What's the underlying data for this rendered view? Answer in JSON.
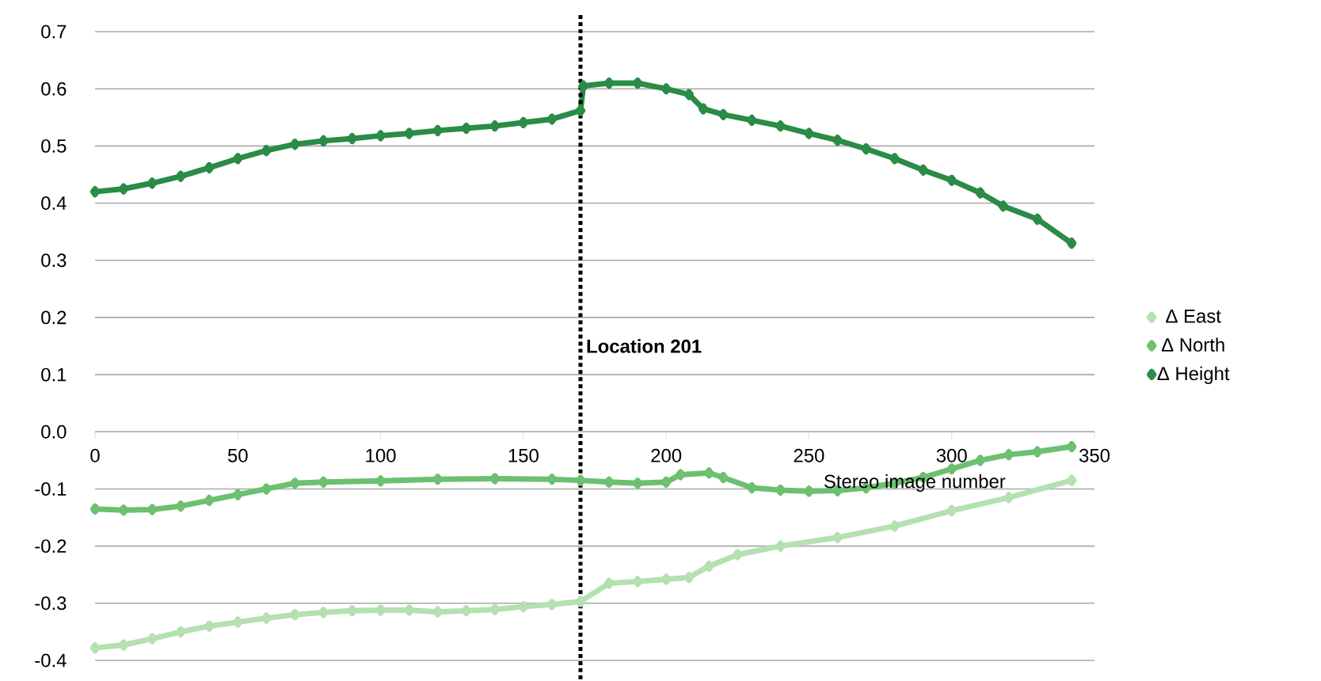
{
  "chart_data": {
    "type": "line",
    "xlabel": "Stereo image number",
    "marker": "diamond",
    "line_style": "solid",
    "grid": "y",
    "legend": "right",
    "xlim": [
      0,
      350
    ],
    "xticks": [
      0,
      50,
      100,
      150,
      200,
      250,
      300,
      350
    ],
    "ylim": [
      -0.4,
      0.7
    ],
    "yticks": [
      -0.4,
      -0.3,
      -0.2,
      -0.1,
      {
        "value": 0,
        "label": "0.0"
      },
      0.1,
      0.2,
      0.3,
      0.4,
      0.5,
      0.6,
      0.7
    ],
    "ref_lines": [
      {
        "axis": "x",
        "value": 170,
        "label": "Location 201",
        "color": "#000000",
        "line_style": "dotted"
      }
    ],
    "series": [
      {
        "name": "Δ East",
        "color": "#b5e0b0",
        "x": [
          0,
          10,
          20,
          30,
          40,
          50,
          60,
          70,
          80,
          90,
          100,
          110,
          120,
          130,
          140,
          150,
          160,
          170,
          180,
          190,
          200,
          208,
          215,
          225,
          240,
          260,
          280,
          300,
          320,
          342
        ],
        "values": [
          -0.378,
          -0.373,
          -0.362,
          -0.35,
          -0.34,
          -0.333,
          -0.326,
          -0.32,
          -0.316,
          -0.313,
          -0.312,
          -0.312,
          -0.315,
          -0.313,
          -0.311,
          -0.306,
          -0.302,
          -0.297,
          -0.265,
          -0.262,
          -0.258,
          -0.255,
          -0.235,
          -0.215,
          -0.2,
          -0.185,
          -0.165,
          -0.138,
          -0.115,
          -0.085
        ]
      },
      {
        "name": "Δ North",
        "color": "#6cc070",
        "x": [
          0,
          10,
          20,
          30,
          40,
          50,
          60,
          70,
          80,
          100,
          120,
          140,
          160,
          170,
          180,
          190,
          200,
          205,
          215,
          220,
          230,
          240,
          250,
          260,
          270,
          280,
          290,
          300,
          310,
          320,
          330,
          342
        ],
        "values": [
          -0.135,
          -0.137,
          -0.136,
          -0.13,
          -0.12,
          -0.11,
          -0.1,
          -0.09,
          -0.088,
          -0.086,
          -0.083,
          -0.082,
          -0.083,
          -0.085,
          -0.088,
          -0.09,
          -0.088,
          -0.075,
          -0.072,
          -0.08,
          -0.098,
          -0.102,
          -0.104,
          -0.103,
          -0.098,
          -0.09,
          -0.08,
          -0.065,
          -0.05,
          -0.04,
          -0.035,
          -0.026
        ]
      },
      {
        "name": "Δ Height",
        "color": "#2a8c46",
        "x": [
          0,
          10,
          20,
          30,
          40,
          50,
          60,
          70,
          80,
          90,
          100,
          110,
          120,
          130,
          140,
          150,
          160,
          170,
          171,
          180,
          190,
          200,
          208,
          213,
          220,
          230,
          240,
          250,
          260,
          270,
          280,
          290,
          300,
          310,
          318,
          330,
          342
        ],
        "values": [
          0.42,
          0.425,
          0.435,
          0.447,
          0.462,
          0.478,
          0.492,
          0.503,
          0.509,
          0.513,
          0.518,
          0.522,
          0.527,
          0.531,
          0.535,
          0.541,
          0.547,
          0.562,
          0.605,
          0.61,
          0.61,
          0.6,
          0.59,
          0.565,
          0.555,
          0.545,
          0.535,
          0.522,
          0.51,
          0.495,
          0.478,
          0.458,
          0.44,
          0.418,
          0.395,
          0.372,
          0.33
        ]
      }
    ]
  }
}
